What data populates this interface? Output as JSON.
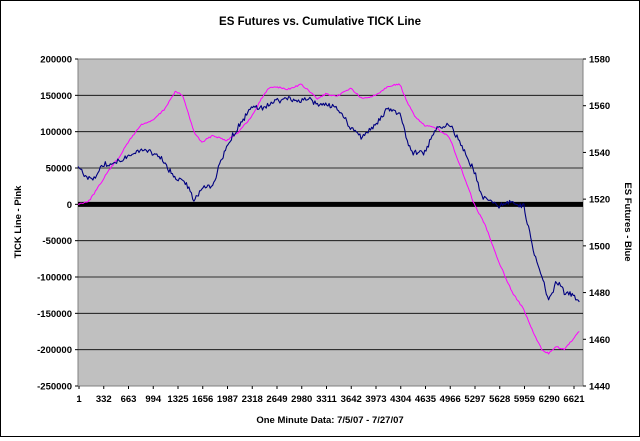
{
  "chart_data": {
    "type": "line",
    "title": "ES Futures vs. Cumulative TICK Line",
    "xlabel": "One Minute Data: 7/5/07 - 7/27/07",
    "ylabel_left": "TICK Line - Pink",
    "ylabel_right": "ES Futures - Blue",
    "ylim_left": [
      -250000,
      200000
    ],
    "ylim_right": [
      1440,
      1580
    ],
    "y_ticks_left": [
      "200000",
      "150000",
      "100000",
      "50000",
      "0",
      "-50000",
      "-100000",
      "-150000",
      "-200000",
      "-250000"
    ],
    "y_ticks_right": [
      "1580",
      "1560",
      "1540",
      "1520",
      "1500",
      "1480",
      "1460",
      "1440"
    ],
    "x_tick_labels": [
      "1",
      "332",
      "663",
      "994",
      "1325",
      "1656",
      "1987",
      "2318",
      "2649",
      "2980",
      "3311",
      "3642",
      "3973",
      "4304",
      "4635",
      "4966",
      "5297",
      "5628",
      "5959",
      "6290",
      "6621"
    ],
    "x_range": [
      1,
      6750
    ],
    "grid": true,
    "plot_background": "#c0c0c0",
    "zero_line_color": "#000000",
    "series": [
      {
        "name": "TICK Line",
        "axis": "left",
        "color": "#ff00ff",
        "x": [
          1,
          150,
          250,
          400,
          550,
          700,
          850,
          994,
          1150,
          1300,
          1400,
          1550,
          1656,
          1800,
          1987,
          2150,
          2318,
          2450,
          2550,
          2649,
          2800,
          2980,
          3100,
          3200,
          3311,
          3450,
          3642,
          3800,
          3973,
          4150,
          4304,
          4400,
          4500,
          4635,
          4800,
          4966,
          5100,
          5297,
          5450,
          5628,
          5800,
          5959,
          6100,
          6200,
          6290,
          6400,
          6500,
          6621,
          6700
        ],
        "values": [
          0,
          5000,
          20000,
          45000,
          65000,
          90000,
          110000,
          115000,
          130000,
          155000,
          150000,
          100000,
          85000,
          95000,
          88000,
          100000,
          120000,
          145000,
          160000,
          162000,
          158000,
          165000,
          155000,
          145000,
          152000,
          148000,
          160000,
          145000,
          150000,
          163000,
          165000,
          140000,
          122000,
          108000,
          105000,
          92000,
          55000,
          0,
          -30000,
          -80000,
          -120000,
          -145000,
          -180000,
          -200000,
          -205000,
          -196000,
          -200000,
          -185000,
          -175000
        ]
      },
      {
        "name": "ES Futures",
        "axis": "right",
        "color": "#000080",
        "x": [
          1,
          100,
          200,
          332,
          450,
          550,
          663,
          800,
          994,
          1100,
          1200,
          1325,
          1450,
          1550,
          1656,
          1800,
          1987,
          2100,
          2318,
          2450,
          2649,
          2800,
          2980,
          3100,
          3200,
          3311,
          3450,
          3642,
          3800,
          3973,
          4150,
          4304,
          4450,
          4635,
          4800,
          4966,
          5100,
          5200,
          5297,
          5400,
          5500,
          5628,
          5800,
          5959,
          6100,
          6200,
          6290,
          6400,
          6500,
          6621,
          6700
        ],
        "values": [
          1534,
          1530,
          1528,
          1535,
          1535,
          1537,
          1538,
          1541,
          1540,
          1538,
          1533,
          1529,
          1527,
          1519,
          1525,
          1526,
          1543,
          1549,
          1559,
          1559,
          1562,
          1563,
          1562,
          1563,
          1560,
          1560,
          1560,
          1551,
          1546,
          1552,
          1559,
          1556,
          1540,
          1540,
          1551,
          1552,
          1545,
          1538,
          1532,
          1521,
          1519,
          1517,
          1519,
          1517,
          1496,
          1488,
          1476,
          1485,
          1480,
          1479,
          1476
        ]
      }
    ]
  }
}
